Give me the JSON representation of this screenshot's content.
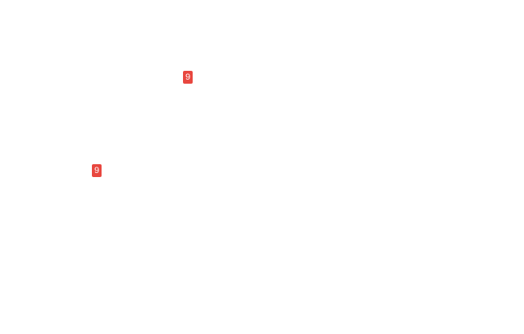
{
  "page": {
    "background_color": "#ffffff"
  },
  "badges": [
    {
      "count": "9",
      "background_color": "#e8473f",
      "text_color": "#ffffff"
    },
    {
      "count": "9",
      "background_color": "#e8473f",
      "text_color": "#ffffff"
    }
  ]
}
